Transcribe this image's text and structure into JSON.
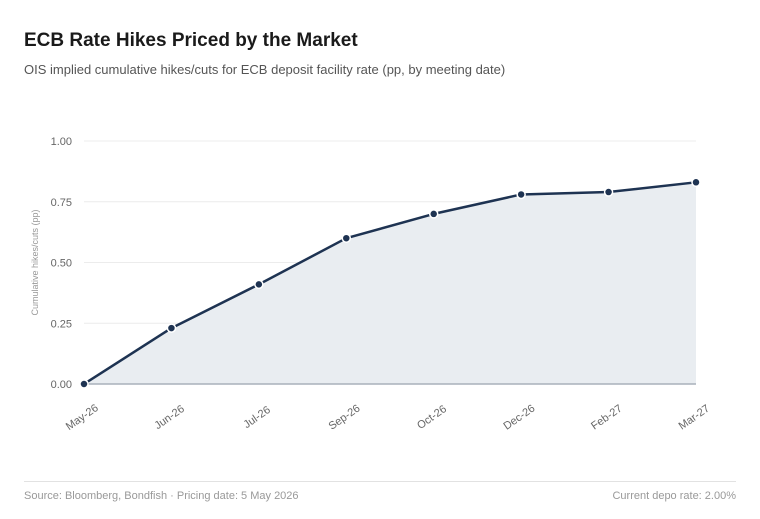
{
  "header": {
    "title": "ECB Rate Hikes Priced by the Market",
    "subtitle": "OIS implied cumulative hikes/cuts for ECB deposit facility rate (pp, by meeting date)"
  },
  "footer": {
    "source": "Source: Bloomberg, Bondfish · Pricing date: 5 May 2026",
    "depo_rate": "Current depo rate: 2.00%"
  },
  "colors": {
    "line": "#1e3352",
    "area": "#e9edf1",
    "grid": "#ececec",
    "axis_text": "#666666"
  },
  "chart_data": {
    "type": "area",
    "categories": [
      "May-26",
      "Jun-26",
      "Jul-26",
      "Sep-26",
      "Oct-26",
      "Dec-26",
      "Feb-27",
      "Mar-27"
    ],
    "values": [
      0.0,
      0.23,
      0.41,
      0.6,
      0.7,
      0.78,
      0.79,
      0.83
    ],
    "ylabel": "Cumulative hikes/cuts (pp)",
    "ylim": [
      0,
      1
    ],
    "yticks": [
      "0.00",
      "0.25",
      "0.50",
      "0.75",
      "1.00"
    ],
    "grid": true,
    "markers": true
  }
}
